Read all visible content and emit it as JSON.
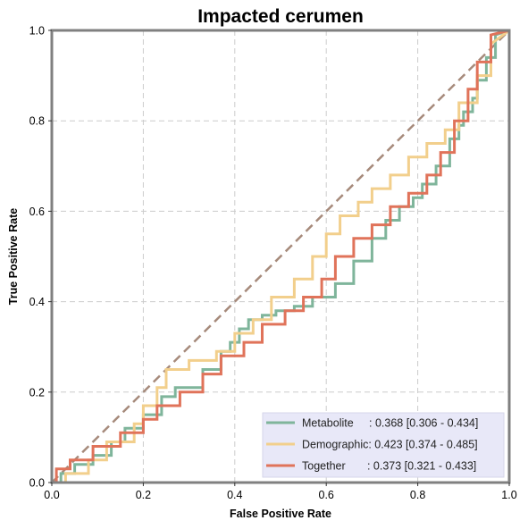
{
  "chart_data": {
    "type": "line",
    "title": "Impacted cerumen",
    "xlabel": "False Positive Rate",
    "ylabel": "True Positive Rate",
    "xlim": [
      0,
      1
    ],
    "ylim": [
      0,
      1
    ],
    "xticks": [
      "0.0",
      "0.2",
      "0.4",
      "0.6",
      "0.8",
      "1.0"
    ],
    "yticks": [
      "0.0",
      "0.2",
      "0.4",
      "0.6",
      "0.8",
      "1.0"
    ],
    "grid": true,
    "legend_position": "lower-right",
    "diagonal": {
      "x": [
        0,
        1
      ],
      "y": [
        0,
        1
      ],
      "color": "#a68a7b",
      "style": "dashed"
    },
    "series": [
      {
        "name": "Metabolite",
        "label": "Metabolite     : 0.368 [0.306 - 0.434]",
        "color": "#7fb59b",
        "x": [
          0.0,
          0.02,
          0.02,
          0.05,
          0.05,
          0.09,
          0.09,
          0.13,
          0.13,
          0.16,
          0.16,
          0.2,
          0.2,
          0.24,
          0.24,
          0.27,
          0.27,
          0.33,
          0.33,
          0.37,
          0.37,
          0.39,
          0.39,
          0.41,
          0.41,
          0.43,
          0.43,
          0.46,
          0.46,
          0.49,
          0.49,
          0.53,
          0.53,
          0.57,
          0.57,
          0.62,
          0.62,
          0.66,
          0.66,
          0.7,
          0.7,
          0.73,
          0.73,
          0.76,
          0.76,
          0.79,
          0.79,
          0.81,
          0.81,
          0.84,
          0.84,
          0.87,
          0.87,
          0.89,
          0.89,
          0.9,
          0.9,
          0.92,
          0.92,
          0.93,
          0.93,
          0.95,
          0.95,
          0.97,
          0.97,
          1.0
        ],
        "y": [
          0.0,
          0.0,
          0.02,
          0.02,
          0.04,
          0.04,
          0.06,
          0.06,
          0.09,
          0.09,
          0.12,
          0.12,
          0.15,
          0.15,
          0.19,
          0.19,
          0.21,
          0.21,
          0.25,
          0.25,
          0.29,
          0.29,
          0.31,
          0.31,
          0.34,
          0.34,
          0.36,
          0.36,
          0.37,
          0.37,
          0.38,
          0.38,
          0.39,
          0.39,
          0.41,
          0.41,
          0.44,
          0.44,
          0.49,
          0.49,
          0.54,
          0.54,
          0.58,
          0.58,
          0.61,
          0.61,
          0.63,
          0.63,
          0.66,
          0.66,
          0.7,
          0.7,
          0.76,
          0.76,
          0.79,
          0.79,
          0.82,
          0.82,
          0.85,
          0.85,
          0.89,
          0.89,
          0.94,
          0.94,
          0.99,
          1.0
        ]
      },
      {
        "name": "Demographic",
        "label": "Demographic: 0.423 [0.374 - 0.485]",
        "color": "#f2cf8c",
        "x": [
          0.0,
          0.03,
          0.03,
          0.08,
          0.08,
          0.12,
          0.12,
          0.18,
          0.18,
          0.2,
          0.2,
          0.23,
          0.23,
          0.25,
          0.25,
          0.3,
          0.3,
          0.36,
          0.36,
          0.4,
          0.4,
          0.44,
          0.44,
          0.48,
          0.48,
          0.53,
          0.53,
          0.57,
          0.57,
          0.6,
          0.6,
          0.63,
          0.63,
          0.67,
          0.67,
          0.7,
          0.7,
          0.74,
          0.74,
          0.78,
          0.78,
          0.82,
          0.82,
          0.86,
          0.86,
          0.89,
          0.89,
          0.93,
          0.93,
          0.96,
          0.96,
          1.0
        ],
        "y": [
          0.0,
          0.0,
          0.02,
          0.02,
          0.05,
          0.05,
          0.09,
          0.09,
          0.13,
          0.13,
          0.17,
          0.17,
          0.21,
          0.21,
          0.25,
          0.25,
          0.27,
          0.27,
          0.29,
          0.29,
          0.33,
          0.33,
          0.36,
          0.36,
          0.41,
          0.41,
          0.45,
          0.45,
          0.5,
          0.5,
          0.55,
          0.55,
          0.59,
          0.59,
          0.62,
          0.62,
          0.65,
          0.65,
          0.68,
          0.68,
          0.72,
          0.72,
          0.75,
          0.75,
          0.78,
          0.78,
          0.84,
          0.84,
          0.9,
          0.9,
          0.97,
          1.0
        ]
      },
      {
        "name": "Together",
        "label": "Together       : 0.373 [0.321 - 0.433]",
        "color": "#e0735a",
        "x": [
          0.0,
          0.01,
          0.01,
          0.04,
          0.04,
          0.09,
          0.09,
          0.15,
          0.15,
          0.2,
          0.2,
          0.23,
          0.23,
          0.28,
          0.28,
          0.33,
          0.33,
          0.37,
          0.37,
          0.42,
          0.42,
          0.46,
          0.46,
          0.51,
          0.51,
          0.55,
          0.55,
          0.59,
          0.59,
          0.62,
          0.62,
          0.66,
          0.66,
          0.7,
          0.7,
          0.74,
          0.74,
          0.78,
          0.78,
          0.82,
          0.82,
          0.85,
          0.85,
          0.88,
          0.88,
          0.91,
          0.91,
          0.93,
          0.93,
          0.96,
          0.96,
          1.0
        ],
        "y": [
          0.0,
          0.0,
          0.03,
          0.03,
          0.05,
          0.05,
          0.08,
          0.08,
          0.11,
          0.11,
          0.14,
          0.14,
          0.17,
          0.17,
          0.2,
          0.2,
          0.24,
          0.24,
          0.28,
          0.28,
          0.31,
          0.31,
          0.35,
          0.35,
          0.38,
          0.38,
          0.41,
          0.41,
          0.45,
          0.45,
          0.5,
          0.5,
          0.54,
          0.54,
          0.57,
          0.57,
          0.61,
          0.61,
          0.64,
          0.64,
          0.68,
          0.68,
          0.73,
          0.73,
          0.8,
          0.8,
          0.87,
          0.87,
          0.93,
          0.93,
          0.99,
          1.0
        ]
      }
    ]
  }
}
